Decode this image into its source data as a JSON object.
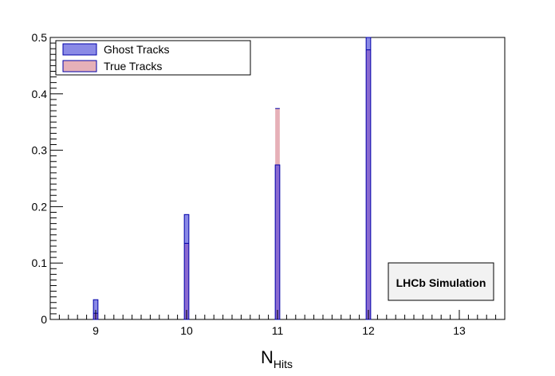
{
  "chart_data": {
    "type": "bar",
    "title": "",
    "xlabel": "N",
    "xlabel_subscript": "Hits",
    "ylabel": "",
    "xlim": [
      8.5,
      13.5
    ],
    "ylim": [
      0,
      0.5
    ],
    "x_ticks": [
      9,
      10,
      11,
      12,
      13
    ],
    "y_ticks": [
      0,
      0.1,
      0.2,
      0.3,
      0.4,
      0.5
    ],
    "y_tick_labels": [
      "0",
      "0.1",
      "0.2",
      "0.3",
      "0.4",
      "0.5"
    ],
    "bin_width": 0.05,
    "legend_position": "top-left",
    "annotation": "LHCb Simulation",
    "grid": false,
    "series": [
      {
        "name": "Ghost Tracks",
        "color": "#8a8ae6",
        "x": [
          9,
          10,
          11,
          12
        ],
        "values": [
          0.035,
          0.186,
          0.274,
          0.5
        ]
      },
      {
        "name": "True Tracks",
        "color": "#e6b0b8",
        "x": [
          9,
          10,
          11,
          12
        ],
        "values": [
          0.011,
          0.135,
          0.374,
          0.478
        ]
      }
    ],
    "overlap_color": "#8a6ad0"
  }
}
